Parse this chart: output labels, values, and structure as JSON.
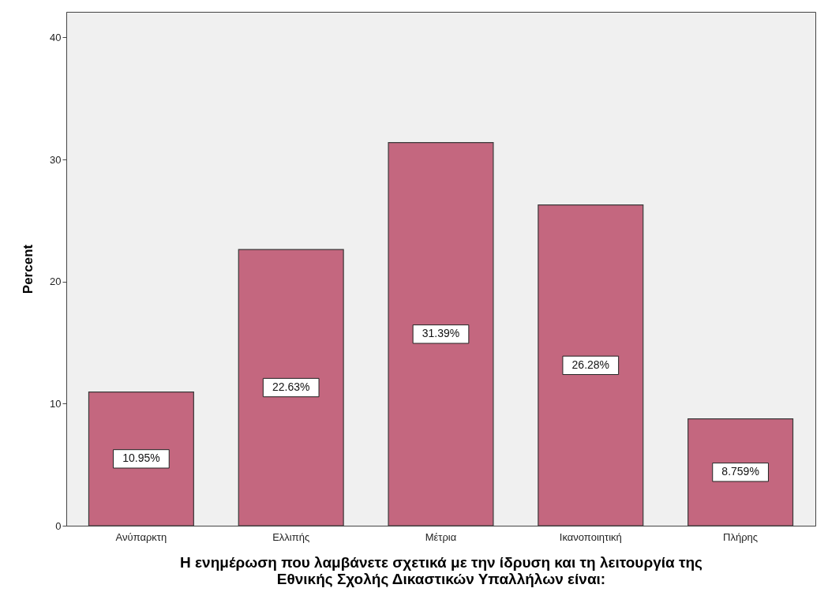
{
  "chart_data": {
    "type": "bar",
    "xlabel": "Η ενημέρωση που λαμβάνετε σχετικά με την ίδρυση και τη λειτουργία της Εθνικής Σχολής Δικαστικών Υπαλλήλων είναι:",
    "ylabel": "Percent",
    "categories": [
      "Ανύπαρκτη",
      "Ελλιπής",
      "Μέτρια",
      "Ικανοποιητική",
      "Πλήρης"
    ],
    "values": [
      10.95,
      22.63,
      31.39,
      26.28,
      8.759
    ],
    "value_labels": [
      "10.95%",
      "22.63%",
      "31.39%",
      "26.28%",
      "8.759%"
    ],
    "color": "#c4677f",
    "ylim": [
      0,
      42.1
    ],
    "yticks": [
      0,
      10,
      20,
      30,
      40
    ],
    "grid": false
  }
}
